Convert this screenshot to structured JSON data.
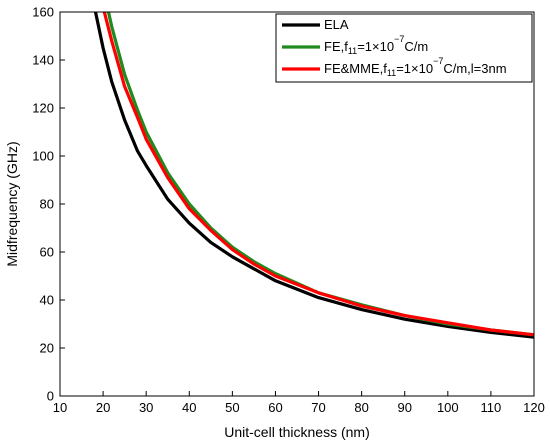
{
  "chart_data": {
    "type": "line",
    "xlabel": "Unit-cell thickness (nm)",
    "ylabel": "Midfrequency (GHz)",
    "xlim": [
      10,
      120
    ],
    "ylim": [
      0,
      160
    ],
    "xticks": [
      10,
      20,
      30,
      40,
      50,
      60,
      70,
      80,
      90,
      100,
      110,
      120
    ],
    "yticks": [
      0,
      20,
      40,
      60,
      80,
      100,
      120,
      140,
      160
    ],
    "legend_position": "top-right",
    "series": [
      {
        "name": "ELA",
        "legend_parts": [
          "ELA"
        ],
        "color": "#000000",
        "x": [
          18,
          20,
          22,
          25,
          28,
          30,
          35,
          40,
          45,
          50,
          55,
          60,
          70,
          80,
          90,
          100,
          110,
          120
        ],
        "y": [
          162,
          145,
          131,
          115,
          102,
          96,
          82,
          72,
          64,
          58,
          53,
          48,
          41,
          36,
          32,
          29,
          26.5,
          24.5
        ]
      },
      {
        "name": "FE,f11=1×10−7C/m",
        "legend_parts": [
          "FE,f",
          "11",
          "=1×10",
          "−7",
          "C/m"
        ],
        "color": "#1f8a1f",
        "x": [
          21,
          22,
          25,
          28,
          30,
          35,
          40,
          45,
          50,
          55,
          60,
          70,
          80,
          90,
          100,
          110,
          120
        ],
        "y": [
          162,
          154,
          134,
          119,
          110,
          93,
          80,
          70,
          62,
          56,
          51,
          43,
          38,
          33.5,
          30,
          27.5,
          25.5
        ]
      },
      {
        "name": "FE&MME,f11=1×10−7C/m,l=3nm",
        "legend_parts": [
          "FE&MME,f",
          "11",
          "=1×10",
          "−7",
          "C/m,l=3nm"
        ],
        "color": "#ff0000",
        "x": [
          20,
          22,
          25,
          28,
          30,
          35,
          40,
          45,
          50,
          55,
          60,
          70,
          80,
          90,
          100,
          110,
          120
        ],
        "y": [
          162,
          148,
          129,
          116,
          107,
          91,
          78,
          69,
          61,
          55,
          50,
          43,
          37.5,
          33.5,
          30.5,
          27.5,
          25.5
        ]
      }
    ]
  }
}
